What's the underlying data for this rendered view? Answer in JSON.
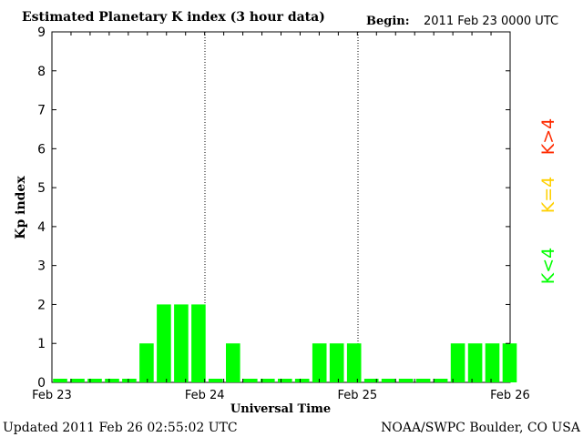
{
  "chart_data": {
    "type": "bar",
    "title": "Estimated Planetary K index (3 hour data)",
    "begin_label": "Begin:",
    "begin_value": "2011 Feb 23 0000 UTC",
    "ylabel": "Kp index",
    "xlabel": "Universal Time",
    "ylim": [
      0,
      9
    ],
    "yticks": [
      "0",
      "1",
      "2",
      "3",
      "4",
      "5",
      "6",
      "7",
      "8",
      "9"
    ],
    "x_tick_labels": [
      "Feb 23",
      "Feb 24",
      "Feb 25",
      "Feb 26"
    ],
    "values": [
      0,
      0,
      0,
      0,
      0,
      1,
      2,
      2,
      2,
      0,
      1,
      0,
      0,
      0,
      0,
      1,
      1,
      1,
      0,
      0,
      0,
      0,
      0,
      1,
      1,
      1,
      1
    ],
    "legend": [
      {
        "label": "K>4",
        "color": "#ff2a00"
      },
      {
        "label": "K=4",
        "color": "#ffd000"
      },
      {
        "label": "K<4",
        "color": "#00ff00"
      }
    ],
    "bar_color": "#00ff00",
    "grid": false
  },
  "footer": {
    "updated": "Updated 2011 Feb 26 02:55:02 UTC",
    "source": "NOAA/SWPC Boulder, CO USA"
  }
}
